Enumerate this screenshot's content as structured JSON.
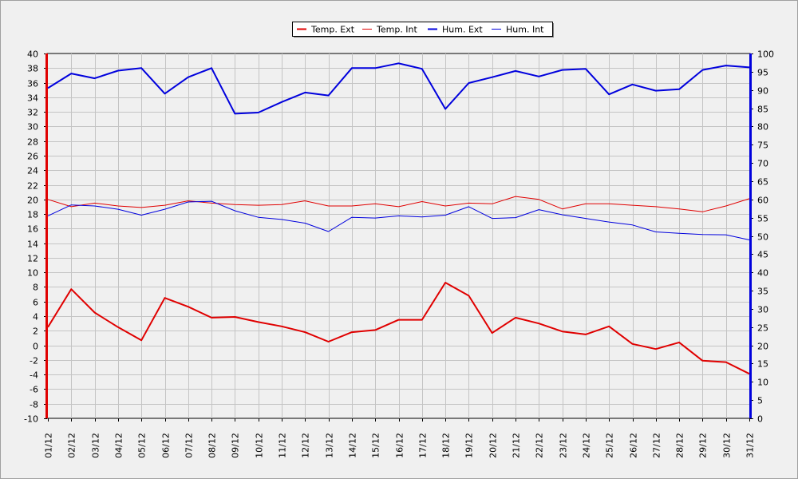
{
  "chart_data": {
    "type": "line",
    "title": "",
    "xlabel": "",
    "ylabel_left": "",
    "ylabel_right": "",
    "categories": [
      "01/12",
      "02/12",
      "03/12",
      "04/12",
      "05/12",
      "06/12",
      "07/12",
      "08/12",
      "09/12",
      "10/12",
      "11/12",
      "12/12",
      "13/12",
      "14/12",
      "15/12",
      "16/12",
      "17/12",
      "18/12",
      "19/12",
      "20/12",
      "21/12",
      "22/12",
      "23/12",
      "24/12",
      "25/12",
      "26/12",
      "27/12",
      "28/12",
      "29/12",
      "30/12",
      "31/12"
    ],
    "y_left": {
      "min": -10,
      "max": 40,
      "step": 2
    },
    "y_right": {
      "min": 0,
      "max": 100,
      "step": 5
    },
    "grid": true,
    "legend_position": "top-right",
    "series": [
      {
        "name": "Temp. Ext",
        "axis": "left",
        "color": "#e00000",
        "line": "thick",
        "values": [
          2.5,
          7.7,
          4.5,
          2.5,
          0.7,
          6.5,
          5.3,
          3.8,
          3.9,
          3.2,
          2.6,
          1.8,
          0.5,
          1.8,
          2.1,
          3.5,
          3.5,
          8.6,
          6.8,
          1.7,
          3.8,
          3.0,
          1.9,
          1.5,
          2.6,
          0.2,
          -0.5,
          0.4,
          -2.1,
          -2.3,
          -3.9
        ]
      },
      {
        "name": "Temp. Int",
        "axis": "left",
        "color": "#e00000",
        "line": "thin",
        "values": [
          20.0,
          19.0,
          19.5,
          19.1,
          18.9,
          19.2,
          19.8,
          19.5,
          19.3,
          19.2,
          19.3,
          19.8,
          19.1,
          19.1,
          19.4,
          19.0,
          19.7,
          19.1,
          19.5,
          19.4,
          20.4,
          20.0,
          18.7,
          19.4,
          19.4,
          19.2,
          19.0,
          18.7,
          18.3,
          19.1,
          20.1
        ]
      },
      {
        "name": "Hum. Ext",
        "axis": "right",
        "color": "#0000dd",
        "line": "thick",
        "values": [
          90.5,
          94.5,
          93.2,
          95.3,
          96.0,
          89.0,
          93.5,
          96.0,
          83.5,
          83.8,
          86.7,
          89.3,
          88.5,
          96.0,
          96.0,
          97.3,
          95.8,
          84.8,
          91.9,
          93.5,
          95.2,
          93.7,
          95.5,
          95.8,
          88.8,
          91.5,
          89.8,
          90.2,
          95.5,
          96.7,
          96.2
        ]
      },
      {
        "name": "Hum. Int",
        "axis": "right",
        "color": "#0000dd",
        "line": "thin",
        "values": [
          55.5,
          58.5,
          58.2,
          57.3,
          55.7,
          57.3,
          59.3,
          59.5,
          56.9,
          55.1,
          54.5,
          53.5,
          51.2,
          55.1,
          54.9,
          55.5,
          55.2,
          55.7,
          58.0,
          54.8,
          55.0,
          57.2,
          55.8,
          54.8,
          53.8,
          53.0,
          51.1,
          50.7,
          50.4,
          50.3,
          48.9
        ]
      }
    ]
  }
}
